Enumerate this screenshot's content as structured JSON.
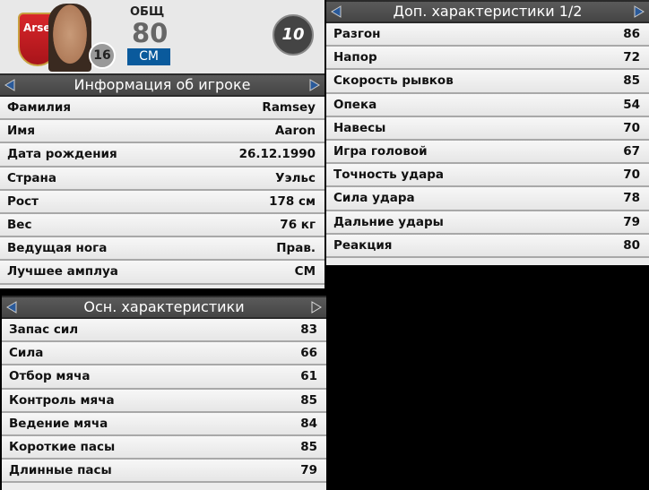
{
  "player_card": {
    "overall_label": "ОБЩ",
    "overall": "80",
    "position": "CM",
    "squad_number": "16",
    "shirt_number": "10",
    "club_badge_text": "Arse"
  },
  "info_panel": {
    "title": "Информация об игроке",
    "rows": [
      {
        "label": "Фамилия",
        "value": "Ramsey"
      },
      {
        "label": "Имя",
        "value": "Aaron"
      },
      {
        "label": "Дата рождения",
        "value": "26.12.1990"
      },
      {
        "label": "Страна",
        "value": "Уэльс"
      },
      {
        "label": "Рост",
        "value": "178 см"
      },
      {
        "label": "Вес",
        "value": "76 кг"
      },
      {
        "label": "Ведущая нога",
        "value": "Прав."
      },
      {
        "label": "Лучшее амплуа",
        "value": "CM"
      }
    ]
  },
  "main_stats": {
    "title": "Осн. характеристики",
    "rows": [
      {
        "label": "Запас сил",
        "value": "83"
      },
      {
        "label": "Сила",
        "value": "66"
      },
      {
        "label": "Отбор мяча",
        "value": "61"
      },
      {
        "label": "Контроль мяча",
        "value": "85"
      },
      {
        "label": "Ведение мяча",
        "value": "84"
      },
      {
        "label": "Короткие пасы",
        "value": "85"
      },
      {
        "label": "Длинные пасы",
        "value": "79"
      }
    ]
  },
  "extra_stats": {
    "title": "Доп. характеристики 1/2",
    "rows": [
      {
        "label": "Разгон",
        "value": "86"
      },
      {
        "label": "Напор",
        "value": "72"
      },
      {
        "label": "Скорость рывков",
        "value": "85"
      },
      {
        "label": "Опека",
        "value": "54"
      },
      {
        "label": "Навесы",
        "value": "70"
      },
      {
        "label": "Игра головой",
        "value": "67"
      },
      {
        "label": "Точность удара",
        "value": "70"
      },
      {
        "label": "Сила удара",
        "value": "78"
      },
      {
        "label": "Дальние удары",
        "value": "79"
      },
      {
        "label": "Реакция",
        "value": "80"
      }
    ]
  },
  "colors": {
    "accent": "#0a5a9c",
    "header": "#4a4a4a",
    "arrow": "#2a5a9a"
  }
}
